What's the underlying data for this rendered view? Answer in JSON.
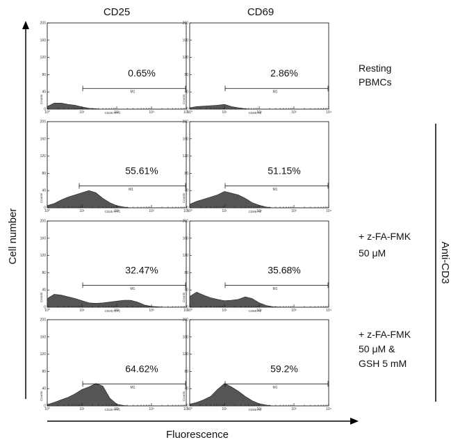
{
  "columns": [
    "CD25",
    "CD69"
  ],
  "y_axis_label": "Cell number",
  "x_axis_label": "Fluorescence",
  "group_label": "Anti-CD3",
  "row_labels": [
    [
      "Resting",
      "PBMCs"
    ],
    [],
    [
      "+ z-FA-FMK",
      "50 μM"
    ],
    [
      "+ z-FA-FMK",
      "50 μM &",
      "GSH 5 mM"
    ]
  ],
  "colors": {
    "fill": "#555555",
    "stroke": "#222222"
  },
  "chart_data": [
    {
      "type": "area",
      "row": 0,
      "col": 0,
      "percent": "0.65%",
      "gate_label": "M1",
      "xlabel": "CD25 FITC",
      "ylabel": "Counts",
      "y_ticks": [
        "0",
        "40",
        "80",
        "120",
        "160",
        "200"
      ],
      "x_ticks": [
        "10⁰",
        "10¹",
        "10²",
        "10³",
        "10⁴"
      ],
      "ylim": [
        0,
        200
      ],
      "xlim": [
        0,
        4
      ],
      "log_x": true,
      "gate": [
        1,
        4
      ],
      "x": [
        0,
        0.2,
        0.4,
        0.6,
        0.8,
        1.0,
        1.2,
        1.4,
        1.6,
        1.8,
        2.0,
        2.4,
        2.8,
        3.2,
        3.6,
        4.0
      ],
      "y": [
        6,
        14,
        14,
        11,
        9,
        5,
        2,
        1,
        0,
        0,
        0,
        0,
        0,
        0,
        0,
        0
      ]
    },
    {
      "type": "area",
      "row": 0,
      "col": 1,
      "percent": "2.86%",
      "gate_label": "M1",
      "xlabel": "CD69 PE",
      "ylabel": "Counts",
      "y_ticks": [
        "0",
        "40",
        "80",
        "120",
        "160",
        "200"
      ],
      "x_ticks": [
        "10⁰",
        "10¹",
        "10²",
        "10³",
        "10⁴"
      ],
      "ylim": [
        0,
        200
      ],
      "xlim": [
        0,
        4
      ],
      "log_x": true,
      "gate": [
        1,
        4
      ],
      "x": [
        0,
        0.2,
        0.4,
        0.6,
        0.8,
        1.0,
        1.2,
        1.4,
        1.6,
        1.8,
        2.0,
        2.4,
        2.8,
        3.2,
        3.6,
        4.0
      ],
      "y": [
        3,
        6,
        7,
        8,
        9,
        11,
        6,
        3,
        1,
        0,
        0,
        0,
        0,
        0,
        0,
        0
      ]
    },
    {
      "type": "area",
      "row": 1,
      "col": 0,
      "percent": "55.61%",
      "gate_label": "M1",
      "xlabel": "CD25 FITC",
      "ylabel": "Counts",
      "y_ticks": [
        "0",
        "40",
        "80",
        "120",
        "160",
        "200"
      ],
      "x_ticks": [
        "10⁰",
        "10¹",
        "10²",
        "10³",
        "10⁴"
      ],
      "ylim": [
        0,
        200
      ],
      "xlim": [
        0,
        4
      ],
      "log_x": true,
      "gate": [
        1,
        4
      ],
      "x": [
        0,
        0.2,
        0.4,
        0.6,
        0.8,
        1.0,
        1.2,
        1.4,
        1.6,
        1.8,
        2.0,
        2.2,
        2.4,
        2.8,
        3.2,
        3.6,
        4.0
      ],
      "y": [
        5,
        10,
        18,
        25,
        30,
        35,
        40,
        35,
        22,
        12,
        5,
        2,
        0,
        0,
        0,
        0,
        0
      ]
    },
    {
      "type": "area",
      "row": 1,
      "col": 1,
      "percent": "51.15%",
      "gate_label": "M1",
      "xlabel": "CD69 PE",
      "ylabel": "Counts",
      "y_ticks": [
        "0",
        "40",
        "80",
        "120",
        "160",
        "200"
      ],
      "x_ticks": [
        "10⁰",
        "10¹",
        "10²",
        "10³",
        "10⁴"
      ],
      "ylim": [
        0,
        200
      ],
      "xlim": [
        0,
        4
      ],
      "log_x": true,
      "gate": [
        1,
        4
      ],
      "x": [
        0,
        0.2,
        0.4,
        0.6,
        0.8,
        1.0,
        1.2,
        1.4,
        1.6,
        1.8,
        2.0,
        2.2,
        2.4,
        2.8,
        3.2,
        3.6,
        4.0
      ],
      "y": [
        8,
        15,
        20,
        25,
        30,
        38,
        34,
        30,
        22,
        12,
        6,
        2,
        0,
        0,
        0,
        0,
        0
      ]
    },
    {
      "type": "area",
      "row": 2,
      "col": 0,
      "percent": "32.47%",
      "gate_label": "M1",
      "xlabel": "CD25 FITC",
      "ylabel": "Counts",
      "y_ticks": [
        "0",
        "40",
        "80",
        "120",
        "160",
        "200"
      ],
      "x_ticks": [
        "10⁰",
        "10¹",
        "10²",
        "10³",
        "10⁴"
      ],
      "ylim": [
        0,
        200
      ],
      "xlim": [
        0,
        4
      ],
      "log_x": true,
      "gate": [
        1,
        4
      ],
      "x": [
        0,
        0.2,
        0.4,
        0.6,
        0.8,
        1.0,
        1.2,
        1.4,
        1.6,
        1.8,
        2.0,
        2.2,
        2.4,
        2.6,
        2.8,
        3.0,
        3.4,
        4.0
      ],
      "y": [
        20,
        30,
        28,
        24,
        20,
        15,
        10,
        9,
        10,
        12,
        14,
        16,
        16,
        12,
        5,
        2,
        0,
        0
      ]
    },
    {
      "type": "area",
      "row": 2,
      "col": 1,
      "percent": "35.68%",
      "gate_label": "M1",
      "xlabel": "CD69 PE",
      "ylabel": "Counts",
      "y_ticks": [
        "0",
        "40",
        "80",
        "120",
        "160",
        "200"
      ],
      "x_ticks": [
        "10⁰",
        "10¹",
        "10²",
        "10³",
        "10⁴"
      ],
      "ylim": [
        0,
        200
      ],
      "xlim": [
        0,
        4
      ],
      "log_x": true,
      "gate": [
        1,
        4
      ],
      "x": [
        0,
        0.2,
        0.4,
        0.6,
        0.8,
        1.0,
        1.2,
        1.4,
        1.6,
        1.8,
        2.0,
        2.2,
        2.4,
        2.8,
        3.2,
        3.6,
        4.0
      ],
      "y": [
        25,
        35,
        28,
        22,
        18,
        15,
        16,
        18,
        24,
        20,
        10,
        4,
        1,
        0,
        0,
        0,
        0
      ]
    },
    {
      "type": "area",
      "row": 3,
      "col": 0,
      "percent": "64.62%",
      "gate_label": "M1",
      "xlabel": "CD25 FITC",
      "ylabel": "Counts",
      "y_ticks": [
        "0",
        "40",
        "80",
        "120",
        "160",
        "200"
      ],
      "x_ticks": [
        "10⁰",
        "10¹",
        "10²",
        "10³",
        "10⁴"
      ],
      "ylim": [
        0,
        200
      ],
      "xlim": [
        0,
        4
      ],
      "log_x": true,
      "gate": [
        1,
        4
      ],
      "x": [
        0,
        0.2,
        0.4,
        0.6,
        0.8,
        1.0,
        1.2,
        1.4,
        1.6,
        1.8,
        2.0,
        2.2,
        2.4,
        2.8,
        3.2,
        3.6,
        4.0
      ],
      "y": [
        3,
        8,
        14,
        20,
        28,
        38,
        44,
        52,
        46,
        18,
        4,
        1,
        0,
        0,
        0,
        0,
        0
      ]
    },
    {
      "type": "area",
      "row": 3,
      "col": 1,
      "percent": "59.2%",
      "gate_label": "M1",
      "xlabel": "CD69 PE",
      "ylabel": "Counts",
      "y_ticks": [
        "0",
        "40",
        "80",
        "120",
        "160",
        "200"
      ],
      "x_ticks": [
        "10⁰",
        "10¹",
        "10²",
        "10³",
        "10⁴"
      ],
      "ylim": [
        0,
        200
      ],
      "xlim": [
        0,
        4
      ],
      "log_x": true,
      "gate": [
        1,
        4
      ],
      "x": [
        0,
        0.2,
        0.4,
        0.6,
        0.8,
        1.0,
        1.2,
        1.4,
        1.6,
        1.8,
        2.0,
        2.2,
        2.4,
        2.8,
        3.2,
        3.6,
        4.0
      ],
      "y": [
        4,
        8,
        14,
        22,
        38,
        52,
        44,
        34,
        22,
        12,
        5,
        2,
        0,
        0,
        0,
        0,
        0
      ]
    }
  ]
}
